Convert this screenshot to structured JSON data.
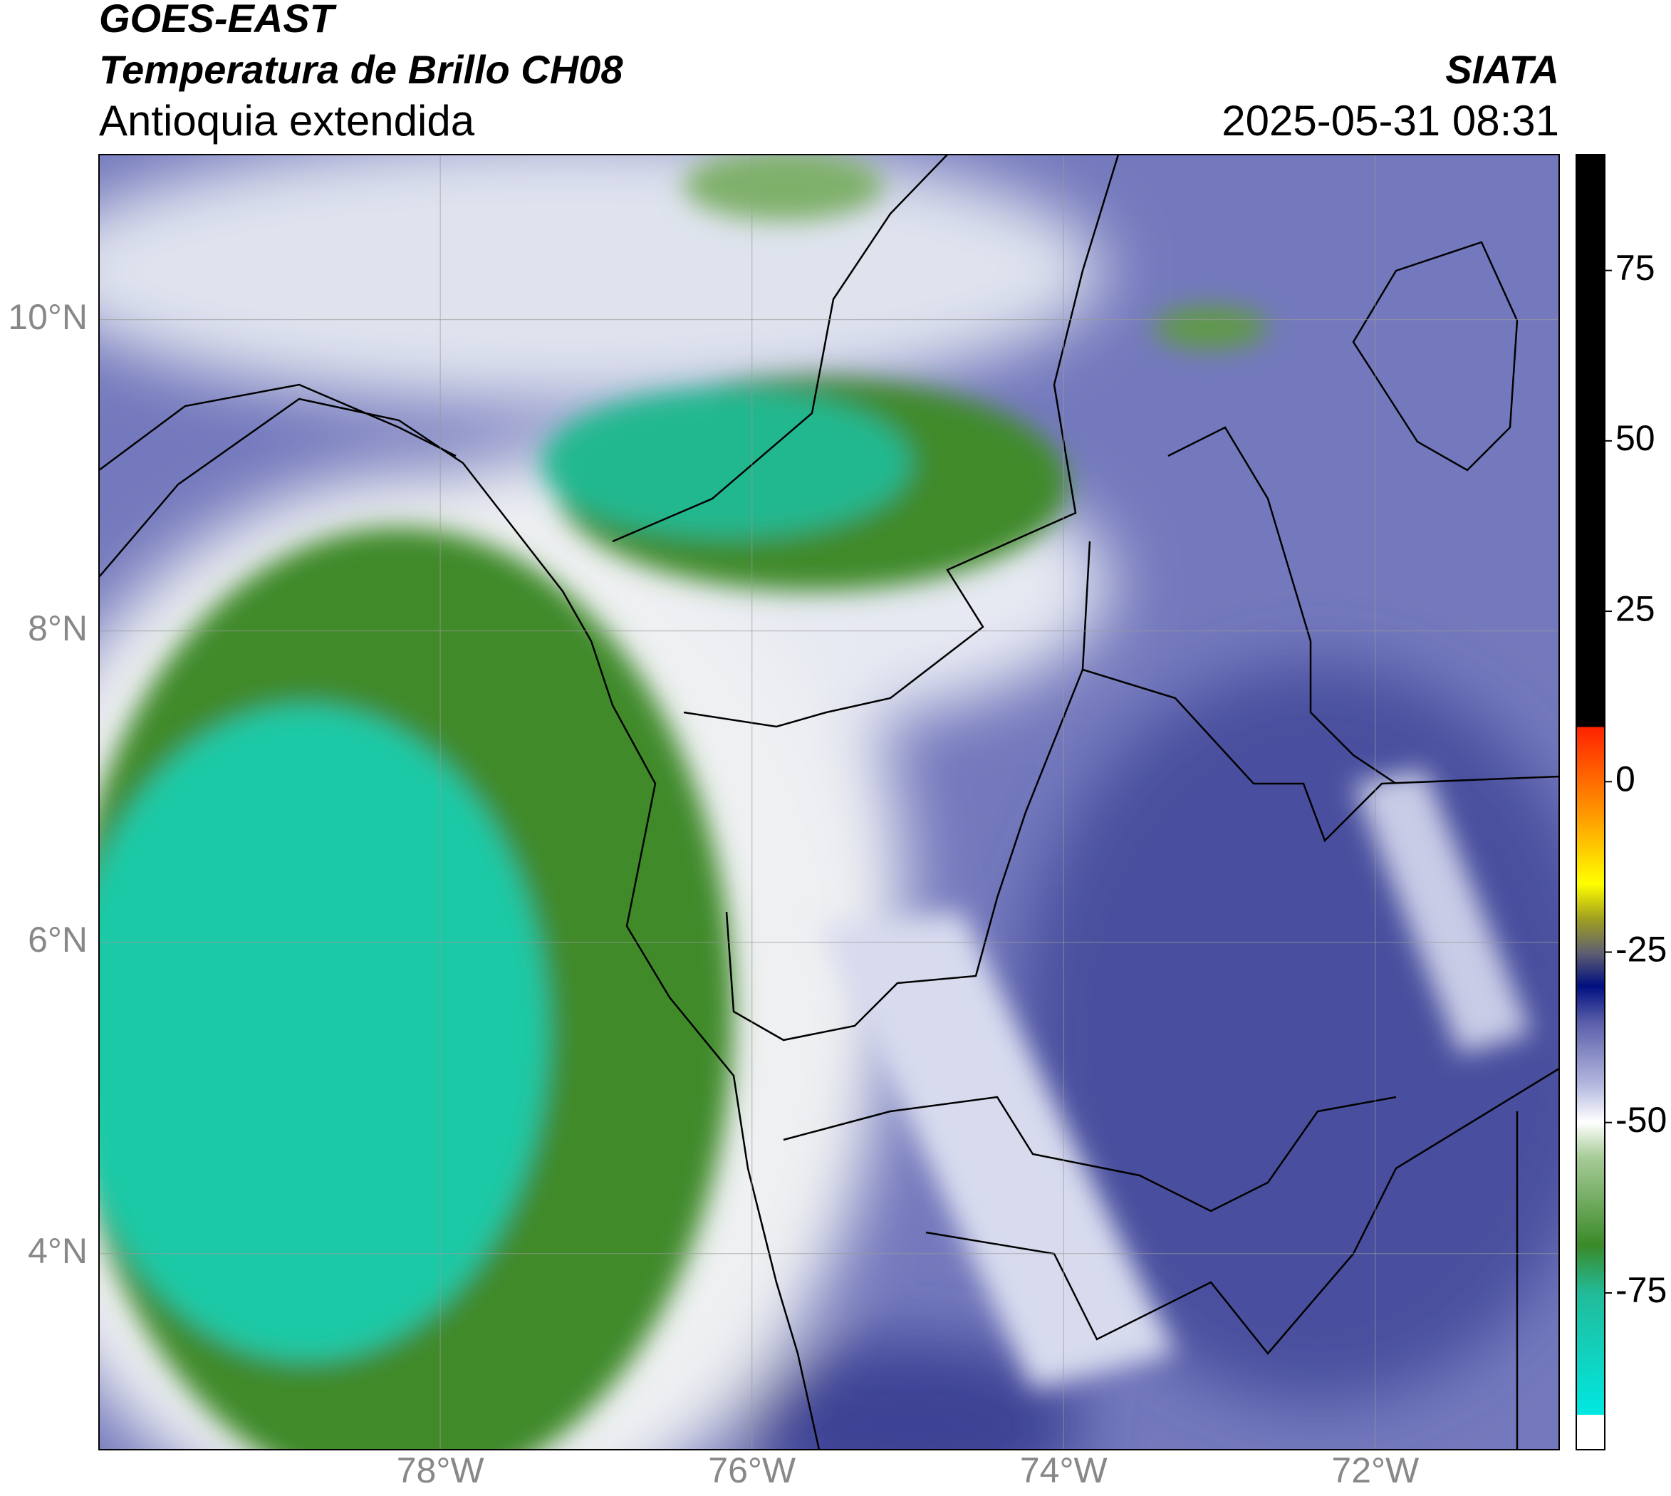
{
  "header": {
    "source": "GOES-EAST",
    "title": "Temperatura de Brillo CH08",
    "region": "Antioquia extendida",
    "agency": "SIATA",
    "timestamp": "2025-05-31 08:31"
  },
  "map": {
    "xlim": [
      -80.19,
      -70.82
    ],
    "ylim": [
      2.74,
      11.06
    ],
    "xticks": [
      {
        "value": -78,
        "label": "78°W"
      },
      {
        "value": -76,
        "label": "76°W"
      },
      {
        "value": -74,
        "label": "74°W"
      },
      {
        "value": -72,
        "label": "72°W"
      }
    ],
    "yticks": [
      {
        "value": 4,
        "label": "4°N"
      },
      {
        "value": 6,
        "label": "6°N"
      },
      {
        "value": 8,
        "label": "8°N"
      },
      {
        "value": 10,
        "label": "10°N"
      }
    ],
    "grid": true
  },
  "colorbar": {
    "lim": [
      -98,
      92
    ],
    "ticks": [
      -75,
      -50,
      -25,
      0,
      25,
      50,
      75
    ]
  }
}
